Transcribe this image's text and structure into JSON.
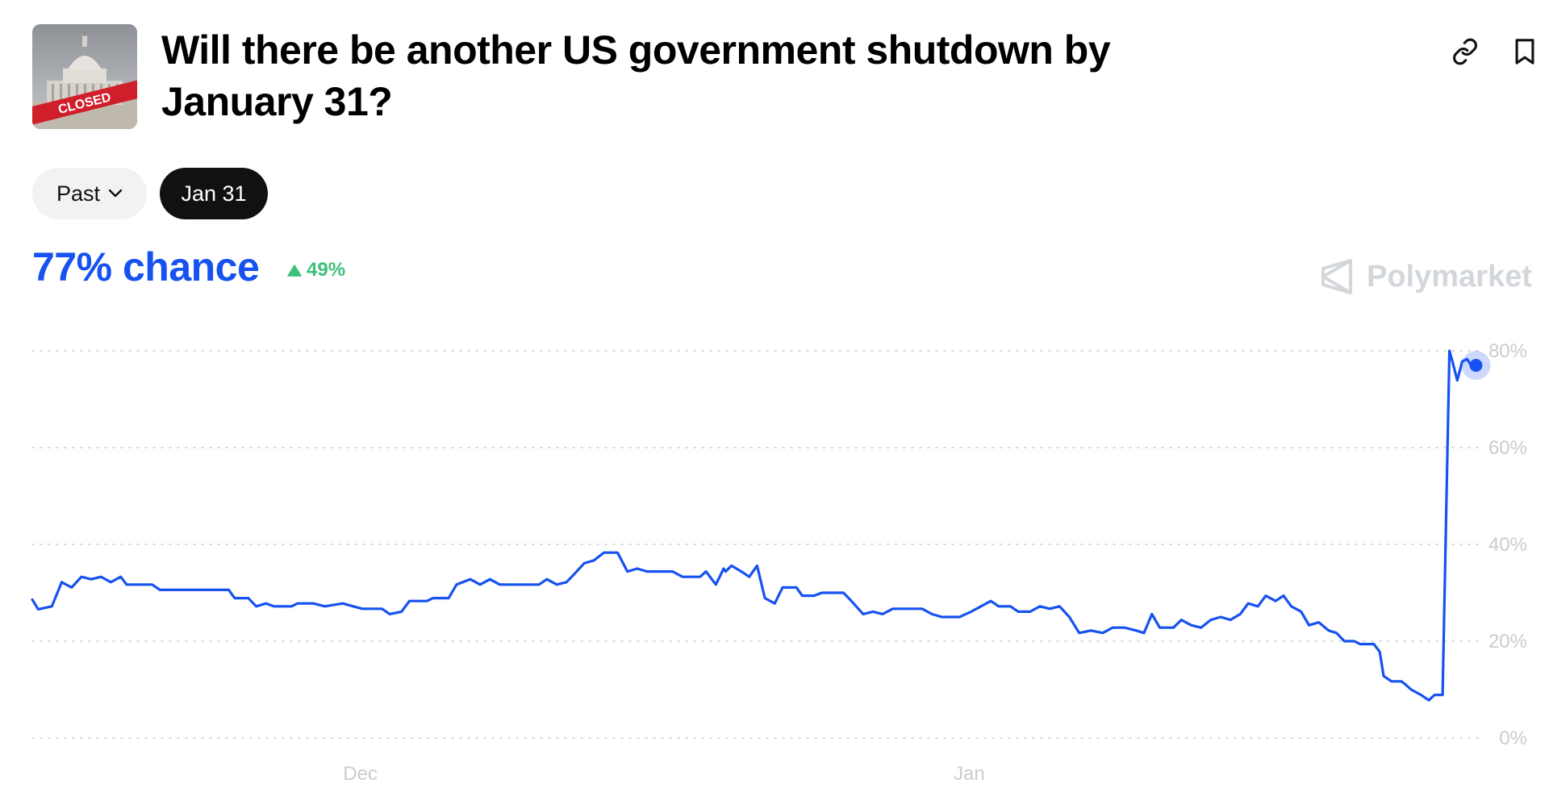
{
  "header": {
    "title": "Will there be another US government shutdown by January 31?",
    "image_text": "CLOSED",
    "actions": [
      "link-icon",
      "bookmark-icon"
    ]
  },
  "filters": {
    "past_label": "Past",
    "selected_date": "Jan 31"
  },
  "summary": {
    "chance_text": "77% chance",
    "change_text": "49%",
    "change_direction": "up",
    "brand": "Polymarket"
  },
  "colors": {
    "accent": "#1652f0",
    "positive": "#3dc07a",
    "grid": "#d9dbe0",
    "tick_text": "#c9ccd1"
  },
  "chart_data": {
    "type": "line",
    "x_ticks": [
      {
        "x": 34,
        "label": "Dec"
      },
      {
        "x": 65,
        "label": "Jan"
      }
    ],
    "y_ticks": [
      0,
      20,
      40,
      60,
      80
    ],
    "y_tick_labels": [
      "0%",
      "20%",
      "40%",
      "60%",
      "80%"
    ],
    "ylim": [
      0,
      80
    ],
    "xlim": [
      17.3,
      90
    ],
    "grid": true,
    "series": [
      {
        "values": [
          [
            17.3,
            28.6
          ],
          [
            17.6,
            26.6
          ],
          [
            18.3,
            27.2
          ],
          [
            18.8,
            32.2
          ],
          [
            19.3,
            31.1
          ],
          [
            19.8,
            33.3
          ],
          [
            20.3,
            32.8
          ],
          [
            20.8,
            33.3
          ],
          [
            21.3,
            32.2
          ],
          [
            21.8,
            33.3
          ],
          [
            22.1,
            31.7
          ],
          [
            23.4,
            31.7
          ],
          [
            23.8,
            30.6
          ],
          [
            27.3,
            30.6
          ],
          [
            27.6,
            28.9
          ],
          [
            28.3,
            28.9
          ],
          [
            28.7,
            27.2
          ],
          [
            29.2,
            27.8
          ],
          [
            29.6,
            27.2
          ],
          [
            30.5,
            27.2
          ],
          [
            30.8,
            27.8
          ],
          [
            31.6,
            27.8
          ],
          [
            32.2,
            27.2
          ],
          [
            33.1,
            27.8
          ],
          [
            34.1,
            26.7
          ],
          [
            35.1,
            26.7
          ],
          [
            35.5,
            25.6
          ],
          [
            36.1,
            26.1
          ],
          [
            36.5,
            28.3
          ],
          [
            37.4,
            28.3
          ],
          [
            37.7,
            28.9
          ],
          [
            38.5,
            28.9
          ],
          [
            38.9,
            31.7
          ],
          [
            39.6,
            32.8
          ],
          [
            40.1,
            31.7
          ],
          [
            40.6,
            32.8
          ],
          [
            41.1,
            31.7
          ],
          [
            43.1,
            31.7
          ],
          [
            43.5,
            32.8
          ],
          [
            44.0,
            31.7
          ],
          [
            44.5,
            32.2
          ],
          [
            44.9,
            33.9
          ],
          [
            45.4,
            36.1
          ],
          [
            45.9,
            36.7
          ],
          [
            46.4,
            38.3
          ],
          [
            47.1,
            38.3
          ],
          [
            47.6,
            34.4
          ],
          [
            48.1,
            35.0
          ],
          [
            48.6,
            34.4
          ],
          [
            49.9,
            34.4
          ],
          [
            50.4,
            33.3
          ],
          [
            51.3,
            33.3
          ],
          [
            51.6,
            34.4
          ],
          [
            52.1,
            31.7
          ],
          [
            52.5,
            35.0
          ],
          [
            52.6,
            34.4
          ],
          [
            52.9,
            35.6
          ],
          [
            53.4,
            34.4
          ],
          [
            53.8,
            33.3
          ],
          [
            54.2,
            35.6
          ],
          [
            54.6,
            28.9
          ],
          [
            55.1,
            27.8
          ],
          [
            55.5,
            31.1
          ],
          [
            56.2,
            31.1
          ],
          [
            56.5,
            29.4
          ],
          [
            57.1,
            29.4
          ],
          [
            57.5,
            30.0
          ],
          [
            58.6,
            30.0
          ],
          [
            59.0,
            28.3
          ],
          [
            59.6,
            25.6
          ],
          [
            60.1,
            26.1
          ],
          [
            60.6,
            25.6
          ],
          [
            61.1,
            26.7
          ],
          [
            62.6,
            26.7
          ],
          [
            63.1,
            25.6
          ],
          [
            63.6,
            25.0
          ],
          [
            64.5,
            25.0
          ],
          [
            65.1,
            26.1
          ],
          [
            65.6,
            27.2
          ],
          [
            66.1,
            28.3
          ],
          [
            66.5,
            27.2
          ],
          [
            67.1,
            27.2
          ],
          [
            67.5,
            26.1
          ],
          [
            68.1,
            26.1
          ],
          [
            68.6,
            27.2
          ],
          [
            69.1,
            26.7
          ],
          [
            69.6,
            27.2
          ],
          [
            70.1,
            25.0
          ],
          [
            70.6,
            21.7
          ],
          [
            71.2,
            22.2
          ],
          [
            71.8,
            21.7
          ],
          [
            72.3,
            22.8
          ],
          [
            72.9,
            22.8
          ],
          [
            73.5,
            22.2
          ],
          [
            73.9,
            21.7
          ],
          [
            74.3,
            25.6
          ],
          [
            74.7,
            22.8
          ],
          [
            75.4,
            22.8
          ],
          [
            75.8,
            24.4
          ],
          [
            76.3,
            23.3
          ],
          [
            76.8,
            22.8
          ],
          [
            77.3,
            24.4
          ],
          [
            77.8,
            25.0
          ],
          [
            78.3,
            24.4
          ],
          [
            78.8,
            25.6
          ],
          [
            79.2,
            27.8
          ],
          [
            79.7,
            27.2
          ],
          [
            80.1,
            29.4
          ],
          [
            80.6,
            28.3
          ],
          [
            81.0,
            29.4
          ],
          [
            81.4,
            27.2
          ],
          [
            81.9,
            26.1
          ],
          [
            82.3,
            23.3
          ],
          [
            82.8,
            23.9
          ],
          [
            83.3,
            22.2
          ],
          [
            83.7,
            21.7
          ],
          [
            84.1,
            20.0
          ],
          [
            84.6,
            20.0
          ],
          [
            84.9,
            19.4
          ],
          [
            85.6,
            19.4
          ],
          [
            85.9,
            17.8
          ],
          [
            86.1,
            12.8
          ],
          [
            86.5,
            11.7
          ],
          [
            87.0,
            11.7
          ],
          [
            87.2,
            11.1
          ],
          [
            87.5,
            10.0
          ],
          [
            88.0,
            8.9
          ],
          [
            88.4,
            7.8
          ],
          [
            88.7,
            8.9
          ],
          [
            89.1,
            8.9
          ],
          [
            89.3,
            50.0
          ],
          [
            89.45,
            80.0
          ],
          [
            89.6,
            77.8
          ],
          [
            89.85,
            73.9
          ],
          [
            90.1,
            77.8
          ],
          [
            90.35,
            78.3
          ],
          [
            90.6,
            76.7
          ],
          [
            90.8,
            77.0
          ]
        ]
      }
    ]
  }
}
